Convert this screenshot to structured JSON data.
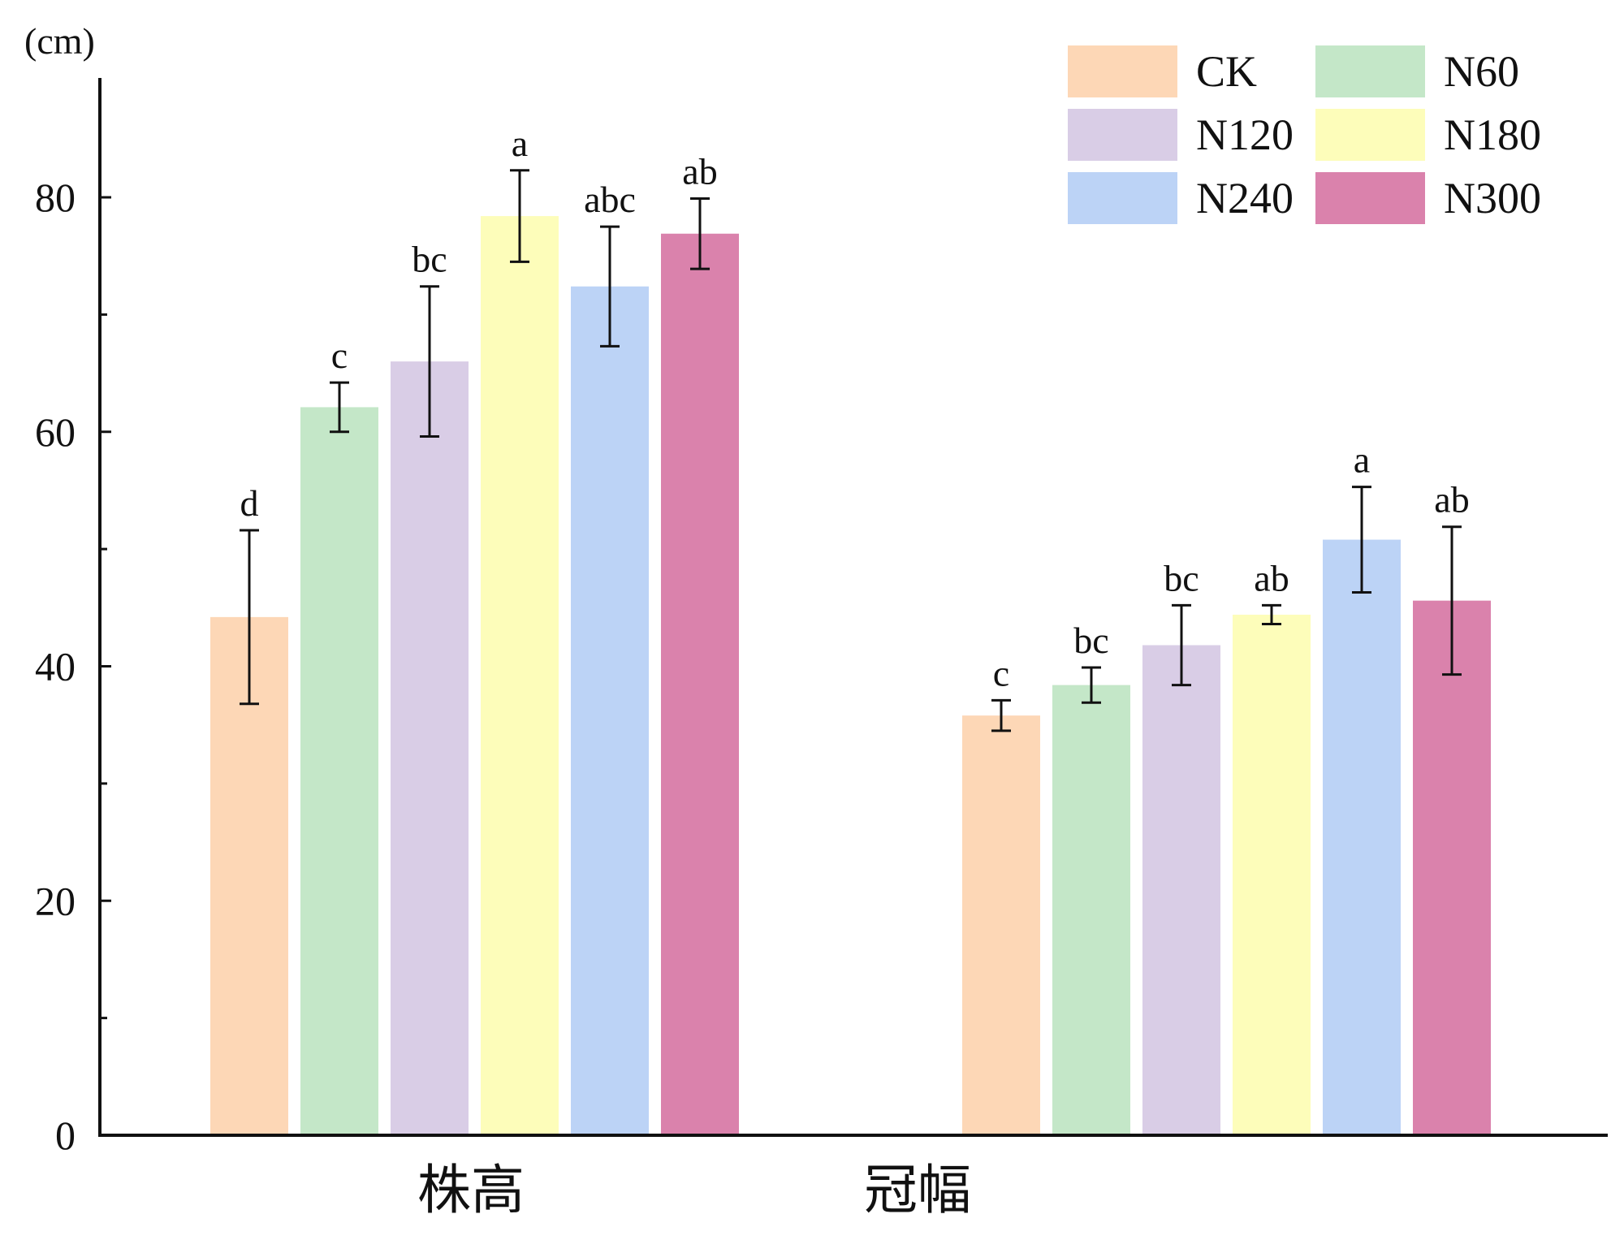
{
  "chart_data": {
    "type": "bar",
    "unit_label": "(cm)",
    "categories": [
      "株高",
      "冠幅"
    ],
    "ylim": [
      0,
      90
    ],
    "yticks": [
      0,
      20,
      40,
      60,
      80
    ],
    "minor_yticks": [
      10,
      30,
      50,
      70
    ],
    "grid": false,
    "legend_position": "top-right",
    "series": [
      {
        "name": "CK",
        "color": "#FDD7B6",
        "values": [
          44.2,
          35.8
        ],
        "errors": [
          7.4,
          1.3
        ],
        "letters": [
          "d",
          "c"
        ]
      },
      {
        "name": "N60",
        "color": "#C4E7C8",
        "values": [
          62.1,
          38.4
        ],
        "errors": [
          2.1,
          1.5
        ],
        "letters": [
          "c",
          "bc"
        ]
      },
      {
        "name": "N120",
        "color": "#D9CDE6",
        "values": [
          66.0,
          41.8
        ],
        "errors": [
          6.4,
          3.4
        ],
        "letters": [
          "bc",
          "bc"
        ]
      },
      {
        "name": "N180",
        "color": "#FDFDBA",
        "values": [
          78.4,
          44.4
        ],
        "errors": [
          3.9,
          0.8
        ],
        "letters": [
          "a",
          "ab"
        ]
      },
      {
        "name": "N240",
        "color": "#BCD3F6",
        "values": [
          72.4,
          50.8
        ],
        "errors": [
          5.1,
          4.5
        ],
        "letters": [
          "abc",
          "a"
        ]
      },
      {
        "name": "N300",
        "color": "#DA82AC",
        "values": [
          76.9,
          45.6
        ],
        "errors": [
          3.0,
          6.3
        ],
        "letters": [
          "ab",
          "ab"
        ]
      }
    ]
  }
}
